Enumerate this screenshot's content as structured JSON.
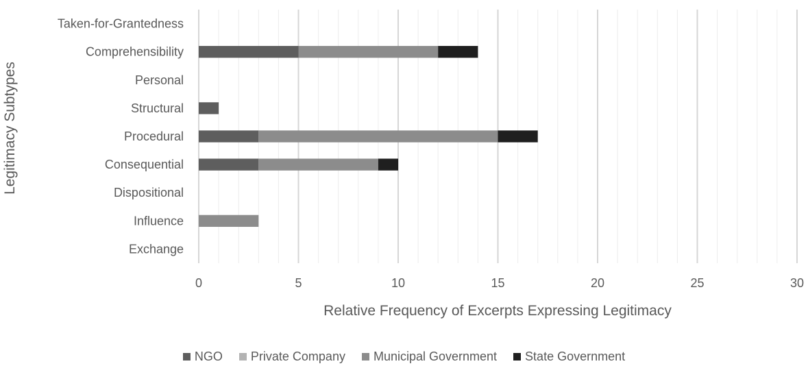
{
  "chart_data": {
    "type": "bar",
    "orientation": "horizontal",
    "stacked": true,
    "title": "",
    "xlabel": "Relative Frequency of Excerpts Expressing Legitimacy",
    "ylabel": "Legitimacy Subtypes",
    "xlim": [
      0,
      30
    ],
    "x_ticks": [
      0,
      5,
      10,
      15,
      20,
      25,
      30
    ],
    "grid": true,
    "legend_position": "bottom",
    "categories": [
      "Taken-for-Grantedness",
      "Comprehensibility",
      "Personal",
      "Structural",
      "Procedural",
      "Consequential",
      "Dispositional",
      "Influence",
      "Exchange"
    ],
    "series": [
      {
        "name": "NGO",
        "color": "#5e5e5e",
        "values": [
          0,
          5,
          0,
          1,
          3,
          3,
          0,
          0,
          0
        ]
      },
      {
        "name": "Private Company",
        "color": "#b3b3b3",
        "values": [
          0,
          0,
          0,
          0,
          0,
          0,
          0,
          0,
          0
        ]
      },
      {
        "name": "Municipal Government",
        "color": "#8c8c8c",
        "values": [
          0,
          7,
          0,
          0,
          12,
          6,
          0,
          3,
          0
        ]
      },
      {
        "name": "State Government",
        "color": "#1f1f1f",
        "values": [
          0,
          2,
          0,
          0,
          2,
          1,
          0,
          0,
          0
        ]
      }
    ]
  }
}
